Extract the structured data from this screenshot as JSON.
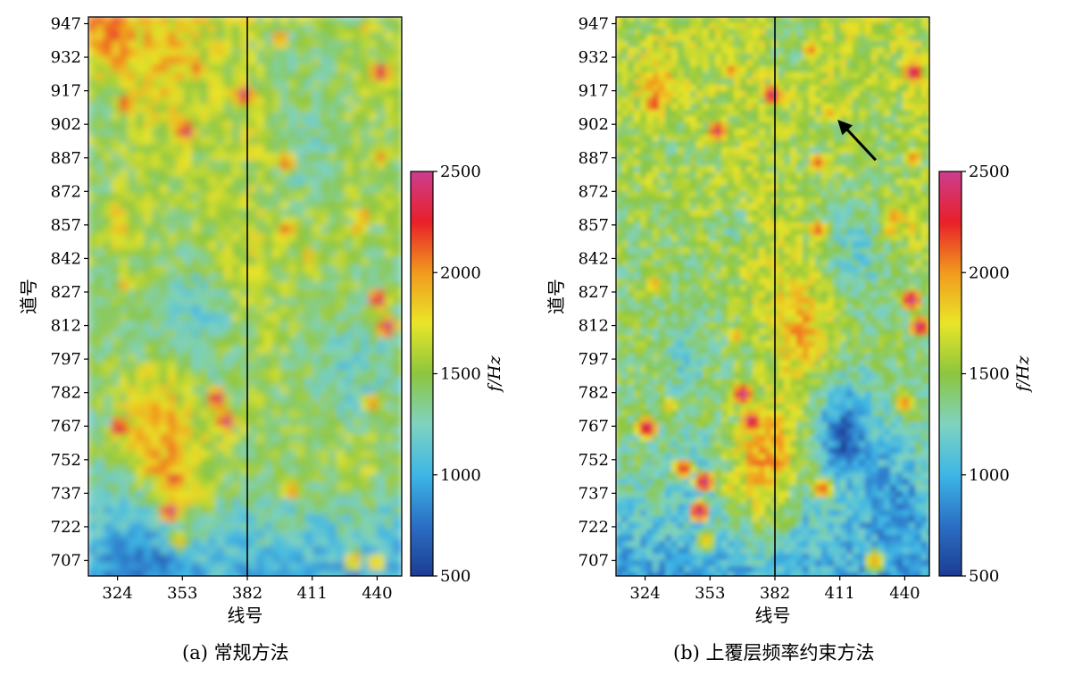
{
  "chart_data": [
    {
      "type": "heatmap",
      "caption": "(a) 常规方法",
      "xlabel": "线号",
      "ylabel": "道号",
      "xticks": [
        324,
        353,
        382,
        411,
        440
      ],
      "yticks": [
        707,
        722,
        737,
        752,
        767,
        782,
        797,
        812,
        827,
        842,
        857,
        872,
        887,
        902,
        917,
        932,
        947
      ],
      "xlim": [
        311,
        451
      ],
      "ylim": [
        700,
        950
      ],
      "colorbar": {
        "label": "f/Hz",
        "min": 500,
        "max": 2500,
        "ticks": [
          500,
          1000,
          1500,
          2000,
          2500
        ]
      },
      "colormap": [
        "#1e3c94",
        "#2a6fc4",
        "#3db6e6",
        "#7fd3c0",
        "#8cc63e",
        "#e9e528",
        "#f19a1e",
        "#e8202a",
        "#cc3d8f"
      ],
      "vertical_line_x": 382,
      "hotspots": [
        {
          "x": 381,
          "y": 915,
          "v": 2500
        },
        {
          "x": 397,
          "y": 940,
          "v": 2150
        },
        {
          "x": 442,
          "y": 925,
          "v": 2500
        },
        {
          "x": 435,
          "y": 944,
          "v": 1900
        },
        {
          "x": 328,
          "y": 911,
          "v": 2300
        },
        {
          "x": 355,
          "y": 899,
          "v": 2500
        },
        {
          "x": 360,
          "y": 926,
          "v": 2200
        },
        {
          "x": 400,
          "y": 885,
          "v": 2200
        },
        {
          "x": 442,
          "y": 887,
          "v": 2100
        },
        {
          "x": 323,
          "y": 864,
          "v": 2000
        },
        {
          "x": 400,
          "y": 855,
          "v": 2200
        },
        {
          "x": 434,
          "y": 861,
          "v": 2100
        },
        {
          "x": 432,
          "y": 855,
          "v": 2000
        },
        {
          "x": 410,
          "y": 843,
          "v": 2000
        },
        {
          "x": 328,
          "y": 831,
          "v": 2000
        },
        {
          "x": 441,
          "y": 824,
          "v": 2500
        },
        {
          "x": 445,
          "y": 812,
          "v": 2500
        },
        {
          "x": 369,
          "y": 780,
          "v": 2500
        },
        {
          "x": 373,
          "y": 770,
          "v": 2500
        },
        {
          "x": 325,
          "y": 767,
          "v": 2500
        },
        {
          "x": 333,
          "y": 775,
          "v": 1900
        },
        {
          "x": 438,
          "y": 778,
          "v": 2100
        },
        {
          "x": 340,
          "y": 749,
          "v": 2200
        },
        {
          "x": 350,
          "y": 744,
          "v": 2400
        },
        {
          "x": 348,
          "y": 730,
          "v": 2500
        },
        {
          "x": 359,
          "y": 739,
          "v": 1900
        },
        {
          "x": 402,
          "y": 739,
          "v": 2100
        },
        {
          "x": 430,
          "y": 708,
          "v": 2000
        },
        {
          "x": 440,
          "y": 707,
          "v": 2000
        },
        {
          "x": 352,
          "y": 717,
          "v": 1900
        }
      ]
    },
    {
      "type": "heatmap",
      "caption": "(b) 上覆层频率约束方法",
      "xlabel": "线号",
      "ylabel": "道号",
      "xticks": [
        324,
        353,
        382,
        411,
        440
      ],
      "yticks": [
        707,
        722,
        737,
        752,
        767,
        782,
        797,
        812,
        827,
        842,
        857,
        872,
        887,
        902,
        917,
        932,
        947
      ],
      "xlim": [
        311,
        451
      ],
      "ylim": [
        700,
        950
      ],
      "colorbar": {
        "label": "f/Hz",
        "min": 500,
        "max": 2500,
        "ticks": [
          500,
          1000,
          1500,
          2000,
          2500
        ]
      },
      "colormap": [
        "#1e3c94",
        "#2a6fc4",
        "#3db6e6",
        "#7fd3c0",
        "#8cc63e",
        "#e9e528",
        "#f19a1e",
        "#e8202a",
        "#cc3d8f"
      ],
      "vertical_line_x": 382,
      "arrow": {
        "from": [
          427,
          886
        ],
        "to": [
          410,
          904
        ]
      },
      "hotspots": [
        {
          "x": 380,
          "y": 915,
          "v": 2500
        },
        {
          "x": 397,
          "y": 935,
          "v": 2100
        },
        {
          "x": 442,
          "y": 925,
          "v": 2500
        },
        {
          "x": 436,
          "y": 944,
          "v": 1900
        },
        {
          "x": 328,
          "y": 911,
          "v": 2300
        },
        {
          "x": 356,
          "y": 899,
          "v": 2400
        },
        {
          "x": 362,
          "y": 926,
          "v": 2100
        },
        {
          "x": 405,
          "y": 907,
          "v": 2000
        },
        {
          "x": 400,
          "y": 885,
          "v": 2200
        },
        {
          "x": 442,
          "y": 887,
          "v": 2100
        },
        {
          "x": 400,
          "y": 855,
          "v": 2200
        },
        {
          "x": 434,
          "y": 861,
          "v": 2100
        },
        {
          "x": 432,
          "y": 855,
          "v": 2000
        },
        {
          "x": 328,
          "y": 831,
          "v": 2000
        },
        {
          "x": 441,
          "y": 824,
          "v": 2500
        },
        {
          "x": 445,
          "y": 812,
          "v": 2500
        },
        {
          "x": 367,
          "y": 782,
          "v": 2500
        },
        {
          "x": 371,
          "y": 770,
          "v": 2500
        },
        {
          "x": 325,
          "y": 767,
          "v": 2500
        },
        {
          "x": 335,
          "y": 777,
          "v": 1900
        },
        {
          "x": 438,
          "y": 778,
          "v": 2100
        },
        {
          "x": 341,
          "y": 749,
          "v": 2300
        },
        {
          "x": 350,
          "y": 743,
          "v": 2500
        },
        {
          "x": 348,
          "y": 730,
          "v": 2500
        },
        {
          "x": 361,
          "y": 740,
          "v": 1900
        },
        {
          "x": 402,
          "y": 740,
          "v": 2200
        },
        {
          "x": 425,
          "y": 708,
          "v": 2000
        },
        {
          "x": 351,
          "y": 717,
          "v": 1900
        },
        {
          "x": 364,
          "y": 808,
          "v": 2000
        },
        {
          "x": 325,
          "y": 876,
          "v": 1800
        }
      ]
    }
  ]
}
